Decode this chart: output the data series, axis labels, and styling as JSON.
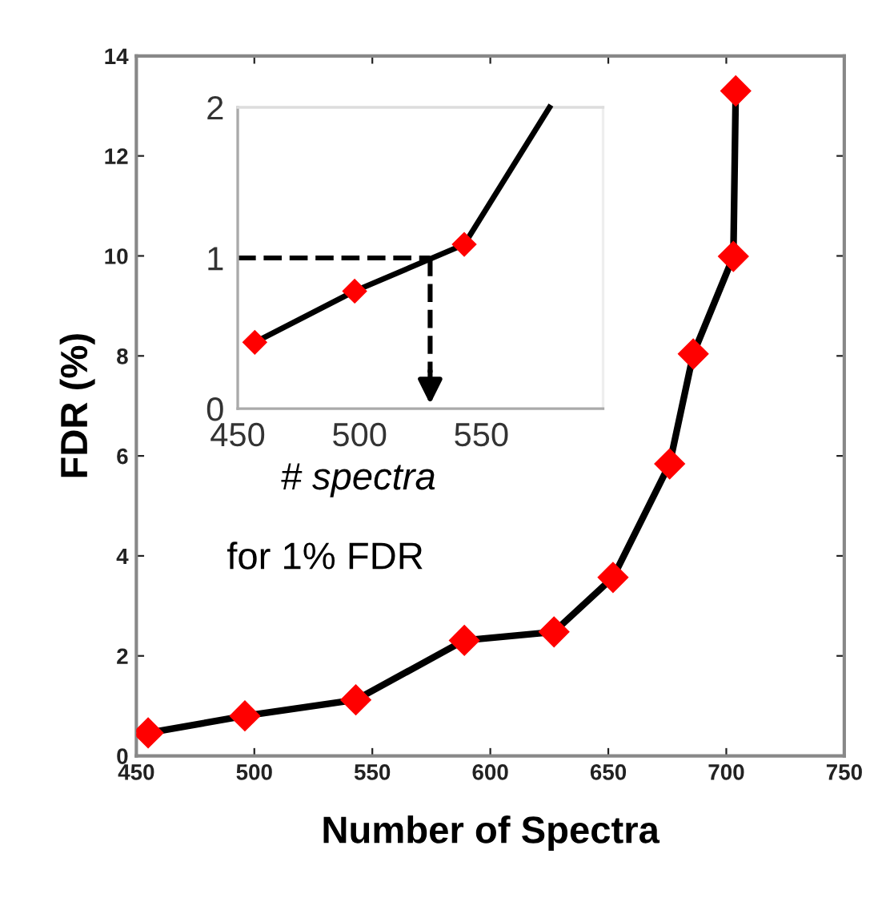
{
  "chart_data": [
    {
      "type": "line",
      "xlabel": "Number of Spectra",
      "ylabel": "FDR (%)",
      "x": [
        455,
        496,
        543,
        589,
        627,
        652,
        676,
        686,
        703,
        704
      ],
      "series": [
        {
          "color": "#000000",
          "colors": [
            "#ff0000",
            "#ff0000",
            "#ff0000",
            "#ff0000",
            "#ff0000",
            "#ff0000",
            "#ff0000",
            "#ff0000",
            "#ff0000",
            "#ff0000"
          ],
          "values": [
            0.46,
            0.8,
            1.12,
            2.31,
            2.48,
            3.57,
            5.84,
            8.04,
            9.99,
            13.3
          ]
        }
      ],
      "marker": "diamond",
      "line_style": "solid",
      "xlim": [
        450,
        750
      ],
      "xticks": [
        450,
        500,
        550,
        600,
        650,
        700,
        750
      ],
      "ylim": [
        0,
        14
      ],
      "yticks": [
        0,
        2,
        4,
        6,
        8,
        10,
        12,
        14
      ],
      "grid": false
    },
    {
      "type": "line",
      "xlabel": "# spectra",
      "annotations": [
        "for 1% FDR"
      ],
      "series": [
        {
          "type": "line",
          "color": "#000000",
          "colors": [
            "#ff0000",
            "#ff0000",
            "#ff0000",
            null
          ],
          "x": [
            457,
            498,
            543,
            578
          ],
          "values": [
            0.44,
            0.78,
            1.09,
            2.0
          ]
        }
      ],
      "marker": "diamond",
      "ref_lines": [
        {
          "axis": "y",
          "value": 1,
          "line_style": "dashed",
          "color": "#000000"
        },
        {
          "axis": "x",
          "value": 529,
          "line_style": "dashed",
          "color": "#000000"
        }
      ],
      "xlim": [
        450,
        600
      ],
      "xticks": [
        450,
        500,
        550
      ],
      "ylim": [
        0,
        2
      ],
      "yticks": [
        0,
        1,
        2
      ],
      "grid": false
    }
  ]
}
